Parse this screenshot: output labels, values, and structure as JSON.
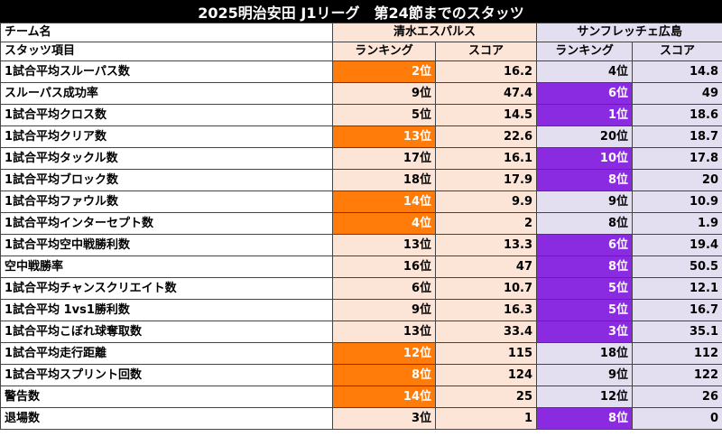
{
  "title": "2025明治安田 J1リーグ　第24節までのスタッツ",
  "header": {
    "team_label": "チーム名",
    "item_label": "スタッツ項目",
    "team_s": "清水エスパルス",
    "team_h": "サンフレッチェ広島",
    "rank_label": "ランキング",
    "score_label": "スコア"
  },
  "colors": {
    "shimizu_bg": "#fce4d6",
    "hiroshima_bg": "#e4dff0",
    "shimizu_highlight": "#ff7c0a",
    "hiroshima_highlight": "#8a2be2"
  },
  "rows": [
    {
      "name": "1試合平均スルーパス数",
      "s_rank": "2位",
      "s_score": "16.2",
      "h_rank": "4位",
      "h_score": "14.8",
      "s_hl": true,
      "h_hl": false
    },
    {
      "name": "スルーパス成功率",
      "s_rank": "9位",
      "s_score": "47.4",
      "h_rank": "6位",
      "h_score": "49",
      "s_hl": false,
      "h_hl": true
    },
    {
      "name": "1試合平均クロス数",
      "s_rank": "5位",
      "s_score": "14.5",
      "h_rank": "1位",
      "h_score": "18.6",
      "s_hl": false,
      "h_hl": true
    },
    {
      "name": "1試合平均クリア数",
      "s_rank": "13位",
      "s_score": "22.6",
      "h_rank": "20位",
      "h_score": "18.7",
      "s_hl": true,
      "h_hl": false
    },
    {
      "name": "1試合平均タックル数",
      "s_rank": "17位",
      "s_score": "16.1",
      "h_rank": "10位",
      "h_score": "17.8",
      "s_hl": false,
      "h_hl": true
    },
    {
      "name": "1試合平均ブロック数",
      "s_rank": "18位",
      "s_score": "17.9",
      "h_rank": "8位",
      "h_score": "20",
      "s_hl": false,
      "h_hl": true
    },
    {
      "name": "1試合平均ファウル数",
      "s_rank": "14位",
      "s_score": "9.9",
      "h_rank": "9位",
      "h_score": "10.9",
      "s_hl": true,
      "h_hl": false
    },
    {
      "name": "1試合平均インターセプト数",
      "s_rank": "4位",
      "s_score": "2",
      "h_rank": "8位",
      "h_score": "1.9",
      "s_hl": true,
      "h_hl": false
    },
    {
      "name": "1試合平均空中戦勝利数",
      "s_rank": "13位",
      "s_score": "13.3",
      "h_rank": "6位",
      "h_score": "19.4",
      "s_hl": false,
      "h_hl": true
    },
    {
      "name": "空中戦勝率",
      "s_rank": "16位",
      "s_score": "47",
      "h_rank": "8位",
      "h_score": "50.5",
      "s_hl": false,
      "h_hl": true
    },
    {
      "name": "1試合平均チャンスクリエイト数",
      "s_rank": "6位",
      "s_score": "10.7",
      "h_rank": "5位",
      "h_score": "12.1",
      "s_hl": false,
      "h_hl": true
    },
    {
      "name": "1試合平均 1vs1勝利数",
      "s_rank": "9位",
      "s_score": "16.3",
      "h_rank": "5位",
      "h_score": "16.7",
      "s_hl": false,
      "h_hl": true
    },
    {
      "name": "1試合平均こぼれ球奪取数",
      "s_rank": "13位",
      "s_score": "33.4",
      "h_rank": "3位",
      "h_score": "35.1",
      "s_hl": false,
      "h_hl": true
    },
    {
      "name": "1試合平均走行距離",
      "s_rank": "12位",
      "s_score": "115",
      "h_rank": "18位",
      "h_score": "112",
      "s_hl": true,
      "h_hl": false
    },
    {
      "name": "1試合平均スプリント回数",
      "s_rank": "8位",
      "s_score": "124",
      "h_rank": "9位",
      "h_score": "122",
      "s_hl": true,
      "h_hl": false
    },
    {
      "name": "警告数",
      "s_rank": "14位",
      "s_score": "25",
      "h_rank": "12位",
      "h_score": "26",
      "s_hl": true,
      "h_hl": false
    },
    {
      "name": "退場数",
      "s_rank": "3位",
      "s_score": "1",
      "h_rank": "8位",
      "h_score": "0",
      "s_hl": false,
      "h_hl": true
    }
  ]
}
